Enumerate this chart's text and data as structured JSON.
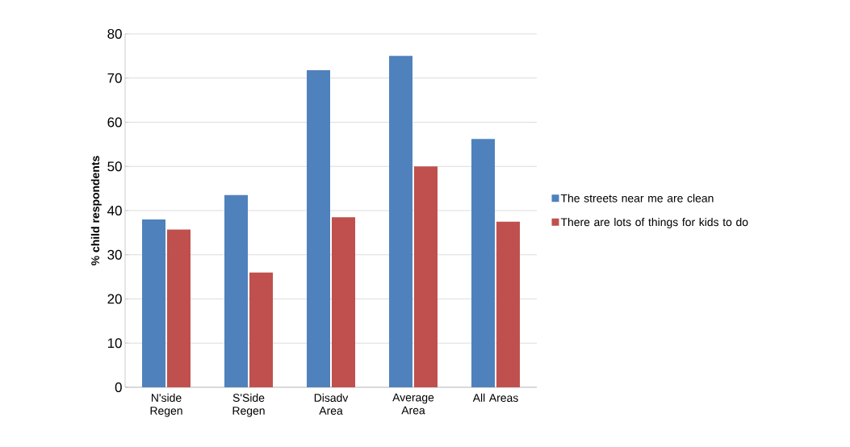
{
  "chart_data": {
    "type": "bar",
    "ylabel": "% child respondents",
    "categories": [
      "N'side Regen",
      "S'Side Regen",
      "Disadv Area",
      "Average Area",
      "All Areas"
    ],
    "series": [
      {
        "name": "The streets near me are clean",
        "color": "#4f81bd",
        "values": [
          38,
          43.5,
          71.8,
          75,
          56.2
        ]
      },
      {
        "name": "There are lots of things for kids to do",
        "color": "#c0504d",
        "values": [
          35.7,
          26,
          38.5,
          50,
          37.5
        ]
      }
    ],
    "ylim": [
      0,
      80
    ],
    "yticks": [
      0,
      10,
      20,
      30,
      40,
      50,
      60,
      70,
      80
    ],
    "grid": "y",
    "legend": "right"
  }
}
